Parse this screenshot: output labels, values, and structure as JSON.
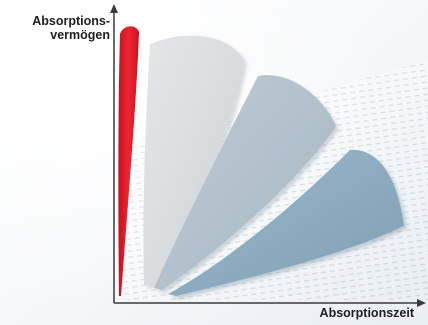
{
  "diagram": {
    "y_axis_label_line1": "Absorptions-",
    "y_axis_label_line2": "vermögen",
    "x_axis_label": "Absorptionszeit",
    "colors": {
      "red_petal": "#e0202b",
      "petal_light": "#d9dcdf",
      "petal_mid": "#aebfcb",
      "petal_dark": "#89aabf",
      "axis": "#3a3a3a"
    }
  }
}
